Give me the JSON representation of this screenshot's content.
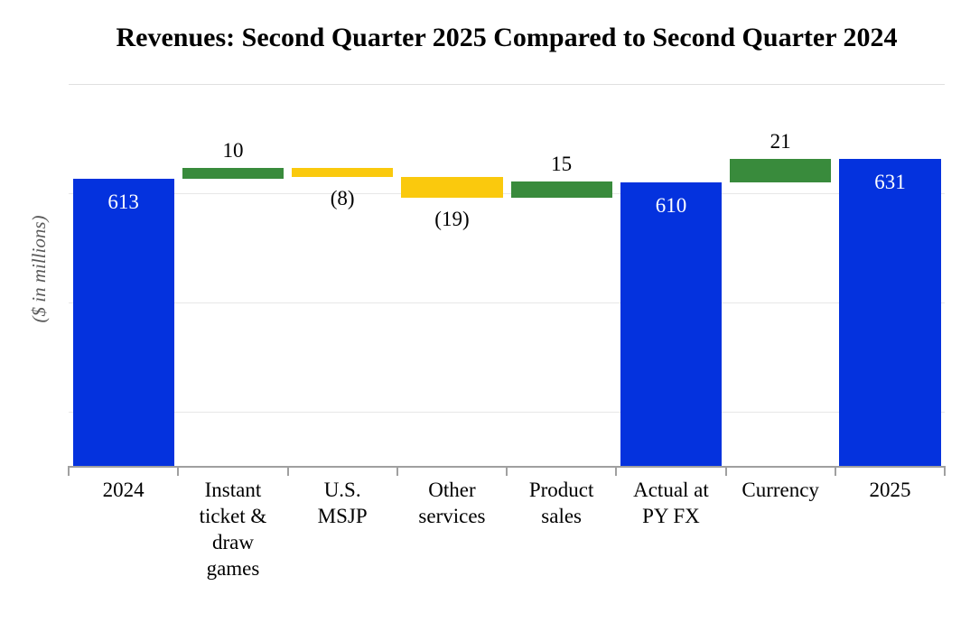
{
  "chart_data": {
    "type": "bar",
    "subtype": "waterfall",
    "title": "Revenues: Second Quarter 2025 Compared to Second Quarter 2024",
    "ylabel": "($ in millions)",
    "xlabel": "",
    "ylim": [
      350,
      700
    ],
    "gridline_values": [
      400,
      500,
      600,
      700
    ],
    "grid": "horizontal-on, no y tick labels",
    "legend": "none",
    "categories": [
      "2024",
      "Instant ticket & draw games",
      "U.S. MSJP",
      "Other services",
      "Product sales",
      "Actual at PY FX",
      "Currency",
      "2025"
    ],
    "categories_wrapped": [
      "2024",
      "Instant\nticket &\ndraw\ngames",
      "U.S.\nMSJP",
      "Other\nservices",
      "Product\nsales",
      "Actual at\nPY FX",
      "Currency",
      "2025"
    ],
    "series": [
      {
        "name": "2024",
        "type": "total",
        "value": 613,
        "label": "613",
        "start": 0,
        "end": 613,
        "label_position": "inside"
      },
      {
        "name": "Instant ticket & draw games",
        "type": "increase",
        "value": 10,
        "label": "10",
        "start": 613,
        "end": 623,
        "label_position": "above"
      },
      {
        "name": "U.S. MSJP",
        "type": "decrease",
        "value": -8,
        "label": "(8)",
        "start": 623,
        "end": 615,
        "label_position": "below"
      },
      {
        "name": "Other services",
        "type": "decrease",
        "value": -19,
        "label": "(19)",
        "start": 615,
        "end": 596,
        "label_position": "below"
      },
      {
        "name": "Product sales",
        "type": "increase",
        "value": 15,
        "label": "15",
        "start": 596,
        "end": 611,
        "label_position": "above"
      },
      {
        "name": "Actual at PY FX",
        "type": "total",
        "value": 610,
        "label": "610",
        "start": 0,
        "end": 610,
        "label_position": "inside"
      },
      {
        "name": "Currency",
        "type": "increase",
        "value": 21,
        "label": "21",
        "start": 610,
        "end": 631,
        "label_position": "above"
      },
      {
        "name": "2025",
        "type": "total",
        "value": 631,
        "label": "631",
        "start": 0,
        "end": 631,
        "label_position": "inside"
      }
    ],
    "colors": {
      "total": "#0432DE",
      "increase": "#398B3C",
      "decrease": "#FAC90D",
      "label_inside": "#FFFFFF",
      "label_outside": "#000000",
      "axis_line": "#A0A0A0",
      "gridline": "#E7E7E7",
      "top_gridline": "#E0E0E0",
      "axis_title_text": "#595959"
    }
  }
}
